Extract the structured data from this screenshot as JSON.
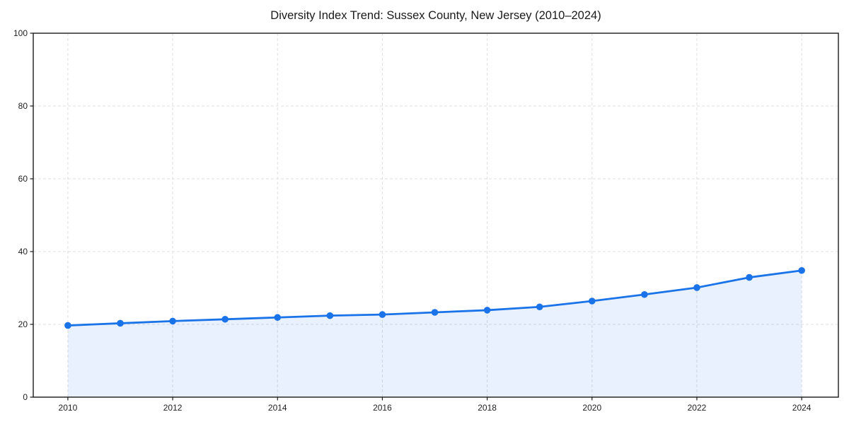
{
  "chart_data": {
    "type": "area",
    "title": "Diversity Index Trend: Sussex County, New Jersey (2010–2024)",
    "x": [
      2010,
      2011,
      2012,
      2013,
      2014,
      2015,
      2016,
      2017,
      2018,
      2019,
      2020,
      2021,
      2022,
      2023,
      2024
    ],
    "series": [
      {
        "name": "Diversity Index",
        "values": [
          19.7,
          20.3,
          20.9,
          21.4,
          21.9,
          22.4,
          22.7,
          23.3,
          23.9,
          24.8,
          26.4,
          28.2,
          30.1,
          32.9,
          34.8
        ]
      }
    ],
    "xlabel": "",
    "ylabel": "",
    "xlim": [
      2009.34,
      2024.7
    ],
    "ylim": [
      0,
      100
    ],
    "xticks": [
      2010,
      2012,
      2014,
      2016,
      2018,
      2020,
      2022,
      2024
    ],
    "yticks": [
      0,
      20,
      40,
      60,
      80,
      100
    ],
    "grid": true,
    "grid_style": "dashed",
    "legend": "none",
    "marker": "circle",
    "colors": {
      "line": "#1a73e8",
      "marker": "#1a73e8",
      "fill": "#1a73e8",
      "fill_opacity": 0.1,
      "grid": "#dfdfdf",
      "axis": "#1a1a1a",
      "tick_text": "#222222",
      "background": "#ffffff"
    }
  }
}
